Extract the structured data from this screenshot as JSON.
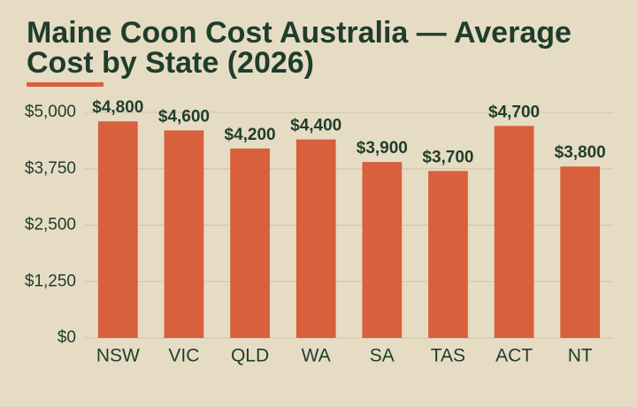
{
  "chart_data": {
    "type": "bar",
    "title": "Maine Coon Cost Australia — Average Cost by State (2026)",
    "categories": [
      "NSW",
      "VIC",
      "QLD",
      "WA",
      "SA",
      "TAS",
      "ACT",
      "NT"
    ],
    "values": [
      4800,
      4600,
      4200,
      4400,
      3900,
      3700,
      4700,
      3800
    ],
    "value_labels": [
      "$4,800",
      "$4,600",
      "$4,200",
      "$4,400",
      "$3,900",
      "$3,700",
      "$4,700",
      "$3,800"
    ],
    "color": "#d9603c",
    "ylim": [
      0,
      5000
    ],
    "yticks": [
      {
        "value": 0,
        "label": "$0"
      },
      {
        "value": 1250,
        "label": "$1,250"
      },
      {
        "value": 2500,
        "label": "$2,500"
      },
      {
        "value": 3750,
        "label": "$3,750"
      },
      {
        "value": 5000,
        "label": "$5,000"
      }
    ],
    "grid": true
  }
}
